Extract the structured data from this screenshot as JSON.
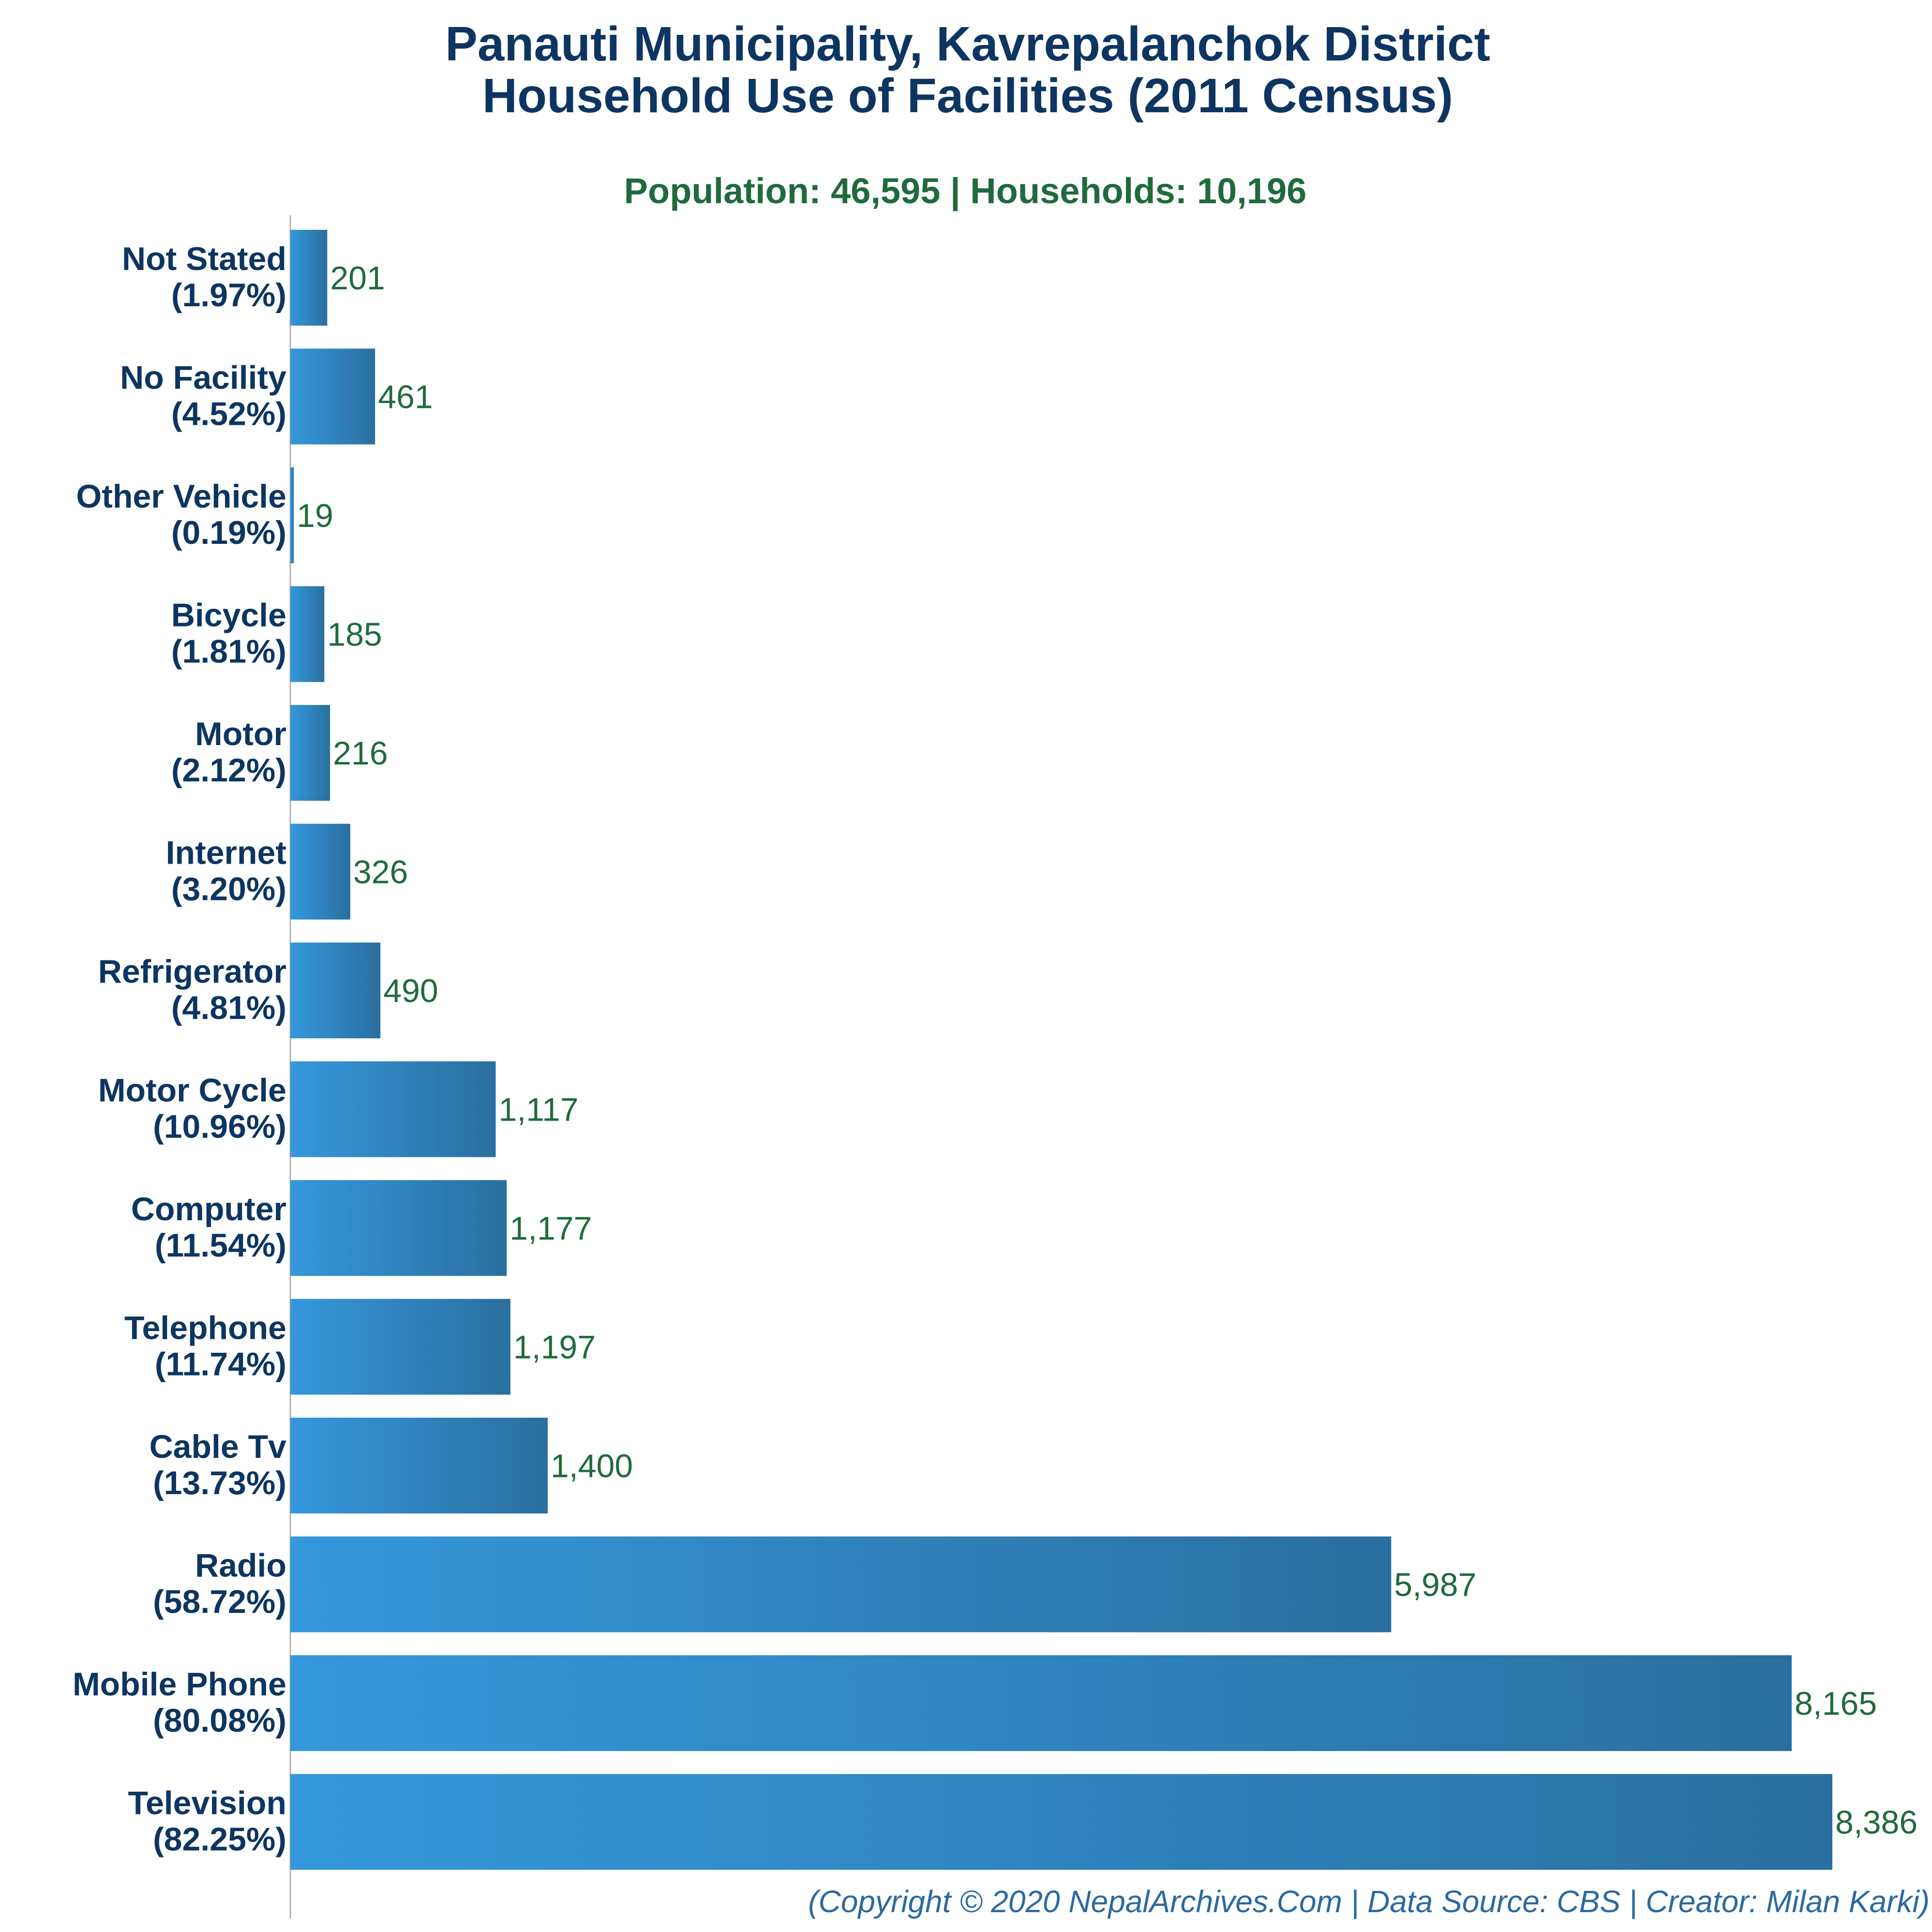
{
  "colors": {
    "title": "#0d3561",
    "subtitle": "#1f6b3b",
    "value_label": "#1f6b3b",
    "bar_gradient_start": "#3598dc",
    "bar_gradient_end": "#2a6f9f",
    "axis": "#b0b0b0",
    "footer": "#2b6aa0"
  },
  "chart_data": {
    "type": "bar",
    "orientation": "horizontal",
    "title_lines": [
      "Panauti Municipality, Kavrepalanchok District",
      "Household Use of Facilities (2011 Census)"
    ],
    "subtitle": "Population: 46,595 | Households: 10,196",
    "categories": [
      "Not Stated",
      "No Facility",
      "Other Vehicle",
      "Bicycle",
      "Motor",
      "Internet",
      "Refrigerator",
      "Motor Cycle",
      "Computer",
      "Telephone",
      "Cable Tv",
      "Radio",
      "Mobile Phone",
      "Television"
    ],
    "percent_labels": [
      "(1.97%)",
      "(4.52%)",
      "(0.19%)",
      "(1.81%)",
      "(2.12%)",
      "(3.20%)",
      "(4.81%)",
      "(10.96%)",
      "(11.54%)",
      "(11.74%)",
      "(13.73%)",
      "(58.72%)",
      "(80.08%)",
      "(82.25%)"
    ],
    "values": [
      201,
      461,
      19,
      185,
      216,
      326,
      490,
      1117,
      1177,
      1197,
      1400,
      5987,
      8165,
      8386
    ],
    "value_labels": [
      "201",
      "461",
      "19",
      "185",
      "216",
      "326",
      "490",
      "1,117",
      "1,177",
      "1,197",
      "1,400",
      "5,987",
      "8,165",
      "8,386"
    ],
    "xlabel": "",
    "ylabel": "",
    "xlim": [
      0,
      8386
    ],
    "grid": false,
    "legend": "none"
  },
  "footer": "(Copyright © 2020 NepalArchives.Com | Data Source: CBS | Creator: Milan Karki)"
}
